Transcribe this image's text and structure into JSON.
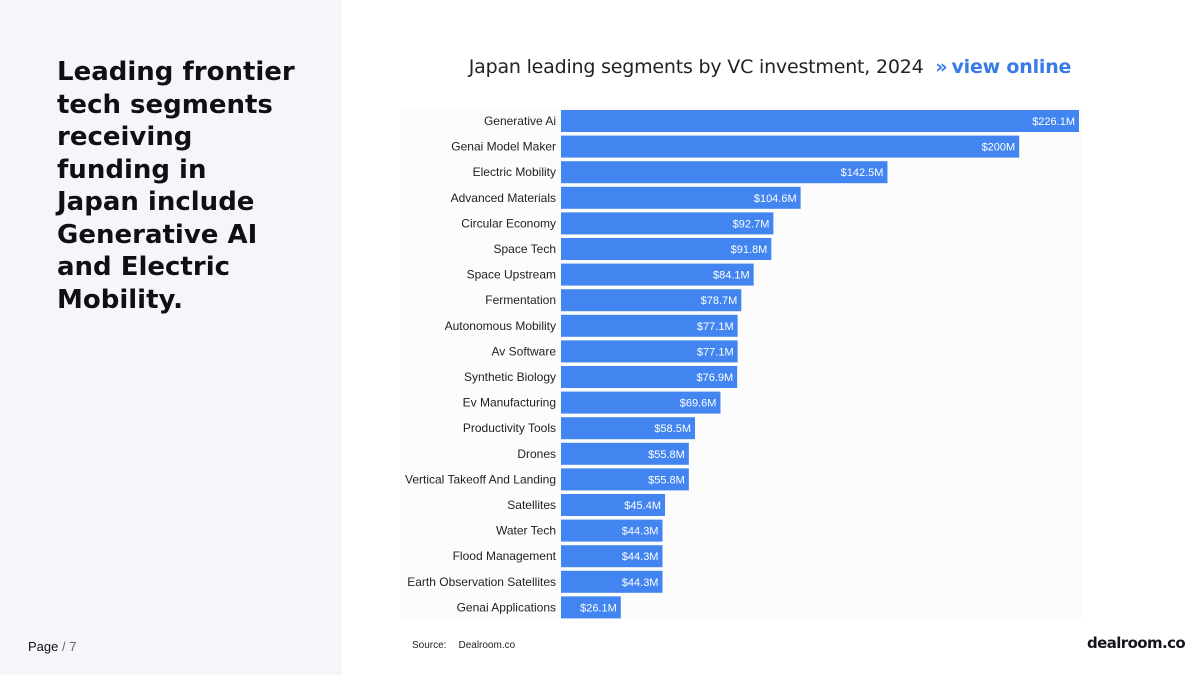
{
  "headline": "Leading frontier tech segments receiving funding in Japan include Generative AI and Electric Mobility.",
  "page": {
    "label": "Page",
    "separator": "/",
    "number": "7"
  },
  "chart_title": {
    "text": "Japan leading segments by VC investment, 2024",
    "arrows": "»",
    "link": "view online"
  },
  "source": {
    "label": "Source:",
    "value": "Dealroom.co"
  },
  "logo": "dealroom.co",
  "colors": {
    "bar": "#4285f0",
    "link": "#3a7be8",
    "panel": "#f5f6fa"
  },
  "chart_data": {
    "type": "bar",
    "orientation": "horizontal",
    "title": "Japan leading segments by VC investment, 2024",
    "unit": "USD millions",
    "categories": [
      "Generative Ai",
      "Genai Model Maker",
      "Electric Mobility",
      "Advanced Materials",
      "Circular Economy",
      "Space Tech",
      "Space Upstream",
      "Fermentation",
      "Autonomous Mobility",
      "Av Software",
      "Synthetic Biology",
      "Ev Manufacturing",
      "Productivity Tools",
      "Drones",
      "Vertical Takeoff And Landing",
      "Satellites",
      "Water Tech",
      "Flood Management",
      "Earth Observation Satellites",
      "Genai Applications"
    ],
    "values": [
      226.1,
      200,
      142.5,
      104.6,
      92.7,
      91.8,
      84.1,
      78.7,
      77.1,
      77.1,
      76.9,
      69.6,
      58.5,
      55.8,
      55.8,
      45.4,
      44.3,
      44.3,
      44.3,
      26.1
    ],
    "value_labels": [
      "$226.1M",
      "$200M",
      "$142.5M",
      "$104.6M",
      "$92.7M",
      "$91.8M",
      "$84.1M",
      "$78.7M",
      "$77.1M",
      "$77.1M",
      "$76.9M",
      "$69.6M",
      "$58.5M",
      "$55.8M",
      "$55.8M",
      "$45.4M",
      "$44.3M",
      "$44.3M",
      "$44.3M",
      "$26.1M"
    ],
    "xlim": [
      0,
      226.1
    ],
    "grid": false,
    "legend": "none"
  }
}
